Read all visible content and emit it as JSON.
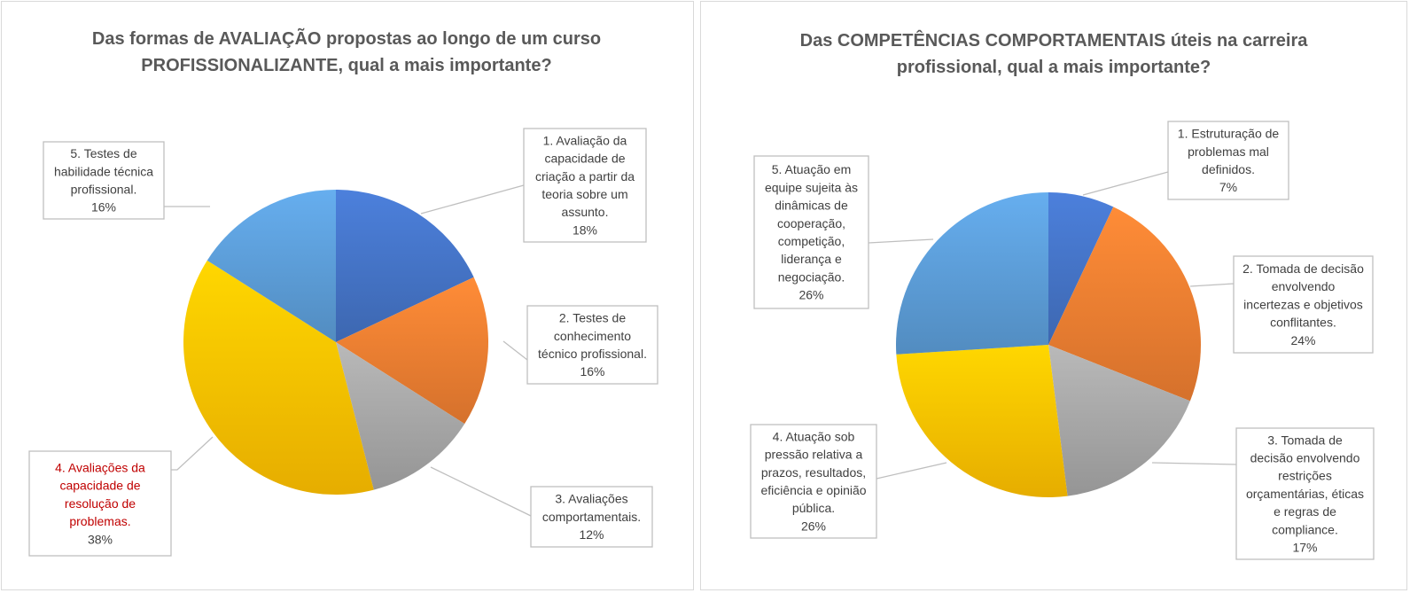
{
  "chart_data": [
    {
      "type": "pie",
      "title": [
        "Das formas de AVALIAÇÃO propostas ao longo de um curso",
        "PROFISSIONALIZANTE, qual a mais importante?"
      ],
      "slices": [
        {
          "label": [
            "1. Avaliação da",
            "capacidade de",
            "criação a partir da",
            "teoria sobre um",
            "assunto."
          ],
          "pct": "18%",
          "value": 18,
          "color": "#4472c4",
          "highlight": false
        },
        {
          "label": [
            "2. Testes de",
            "conhecimento",
            "técnico profissional."
          ],
          "pct": "16%",
          "value": 16,
          "color": "#ed7d31",
          "highlight": false
        },
        {
          "label": [
            "3. Avaliações",
            "comportamentais."
          ],
          "pct": "12%",
          "value": 12,
          "color": "#a5a5a5",
          "highlight": false
        },
        {
          "label": [
            "4. Avaliações da",
            "capacidade de",
            "resolução de",
            "problemas."
          ],
          "pct": "38%",
          "value": 38,
          "color": "#ffc000",
          "highlight": true
        },
        {
          "label": [
            "5. Testes de",
            "habilidade técnica",
            "profissional."
          ],
          "pct": "16%",
          "value": 16,
          "color": "#5b9bd5",
          "highlight": false
        }
      ]
    },
    {
      "type": "pie",
      "title": [
        "Das COMPETÊNCIAS COMPORTAMENTAIS úteis na carreira",
        "profissional, qual a mais importante?"
      ],
      "slices": [
        {
          "label": [
            "1. Estruturação de",
            "problemas mal",
            "definidos."
          ],
          "pct": "7%",
          "value": 7,
          "color": "#4472c4",
          "highlight": false
        },
        {
          "label": [
            "2. Tomada de decisão",
            "envolvendo",
            "incertezas e objetivos",
            "conflitantes."
          ],
          "pct": "24%",
          "value": 24,
          "color": "#ed7d31",
          "highlight": false
        },
        {
          "label": [
            "3. Tomada de",
            "decisão envolvendo",
            "restrições",
            "orçamentárias, éticas",
            "e regras de",
            "compliance."
          ],
          "pct": "17%",
          "value": 17,
          "color": "#a5a5a5",
          "highlight": false
        },
        {
          "label": [
            "4. Atuação sob",
            "pressão relativa a",
            "prazos, resultados,",
            "eficiência e opinião",
            "pública."
          ],
          "pct": "26%",
          "value": 26,
          "color": "#ffc000",
          "highlight": false
        },
        {
          "label": [
            "5. Atuação em",
            "equipe sujeita às",
            "dinâmicas de",
            "cooperação,",
            "competição,",
            "liderança e",
            "negociação."
          ],
          "pct": "26%",
          "value": 26,
          "color": "#5b9bd5",
          "highlight": false
        }
      ]
    }
  ]
}
